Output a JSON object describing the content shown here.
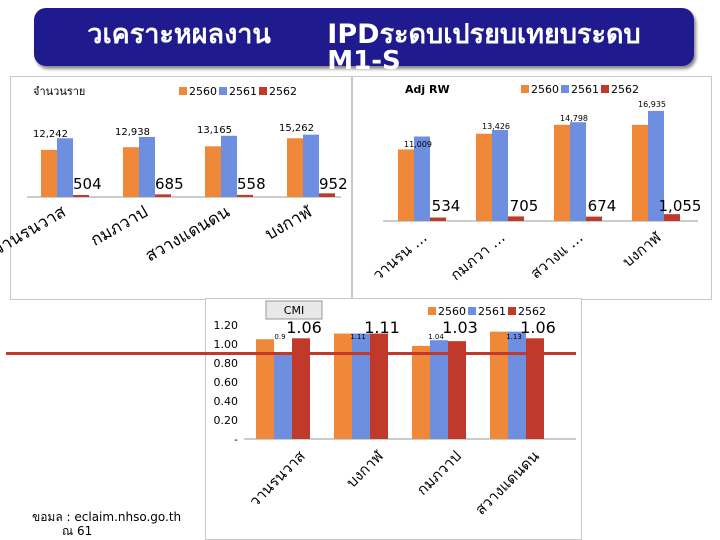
{
  "title": {
    "line1": "วเคราะหผลงาน      IPDระดบเปรยบเทยบระดบ",
    "line2": "M1-S"
  },
  "source": {
    "label": "ขอมล",
    "text": ": eclaim.nhso.go.th",
    "sub": "ณ 61"
  },
  "colors": {
    "s2560": "#f0883a",
    "s2561": "#6e8fe0",
    "s2562": "#c0392b",
    "title_bg": "#1f1b8f",
    "ref_line": "#c0392b"
  },
  "chart_data": [
    {
      "type": "bar",
      "title": "จำนวนราย",
      "categories": [
        "วานรนวาส",
        "กมภวาป",
        "สวางแดนดน",
        "บงกาฬ"
      ],
      "series": [
        {
          "name": "2560",
          "values": [
            12242,
            12938,
            13165,
            15262
          ]
        },
        {
          "name": "2561",
          "values": [
            15262,
            15600,
            15900,
            16200
          ]
        },
        {
          "name": "2562",
          "values": [
            504,
            685,
            558,
            952
          ]
        }
      ],
      "data_labels_2560": [
        "12,242",
        "12,938",
        "13,165",
        "15,262"
      ],
      "data_labels_2562": [
        "504",
        "685",
        "558",
        "952"
      ],
      "ylim": [
        0,
        20000
      ],
      "legend": "top-right"
    },
    {
      "type": "bar",
      "title": "Adj RW",
      "categories": [
        "วานรน …",
        "กมภวา …",
        "สวางแ …",
        "บงกาฬ"
      ],
      "series": [
        {
          "name": "2560",
          "values": [
            11009,
            13426,
            14798,
            14798
          ]
        },
        {
          "name": "2561",
          "values": [
            13000,
            14000,
            15200,
            16935
          ]
        },
        {
          "name": "2562",
          "values": [
            534,
            705,
            674,
            1055
          ]
        }
      ],
      "data_labels_top": [
        "11,009",
        "13,426",
        "14,798",
        "16,935"
      ],
      "data_labels_2562": [
        "534",
        "705",
        "674",
        "1,055"
      ],
      "ylim": [
        0,
        20000
      ],
      "legend": "top-right"
    },
    {
      "type": "bar",
      "title": "CMI",
      "categories": [
        "วานรนวาส",
        "บงกาฬ",
        "กมภวาป",
        "สวางแดนดน"
      ],
      "series": [
        {
          "name": "2560",
          "values": [
            1.05,
            1.11,
            0.98,
            1.13
          ]
        },
        {
          "name": "2561",
          "values": [
            0.9,
            1.11,
            1.04,
            1.13
          ]
        },
        {
          "name": "2562",
          "values": [
            1.06,
            1.11,
            1.03,
            1.06
          ]
        }
      ],
      "data_labels": [
        {
          "small": "0.9",
          "big": "1.06"
        },
        {
          "small": "1.11",
          "big": "1.11"
        },
        {
          "small": "1.04",
          "big": "1.03"
        },
        {
          "small": "1.13",
          "big": "1.06"
        }
      ],
      "yticks": [
        "1.20",
        "1.00",
        "0.80",
        "0.60",
        "0.40",
        "0.20",
        "-"
      ],
      "ylim": [
        0,
        1.3
      ],
      "ref_line": 0.9,
      "legend": "top-right"
    }
  ]
}
